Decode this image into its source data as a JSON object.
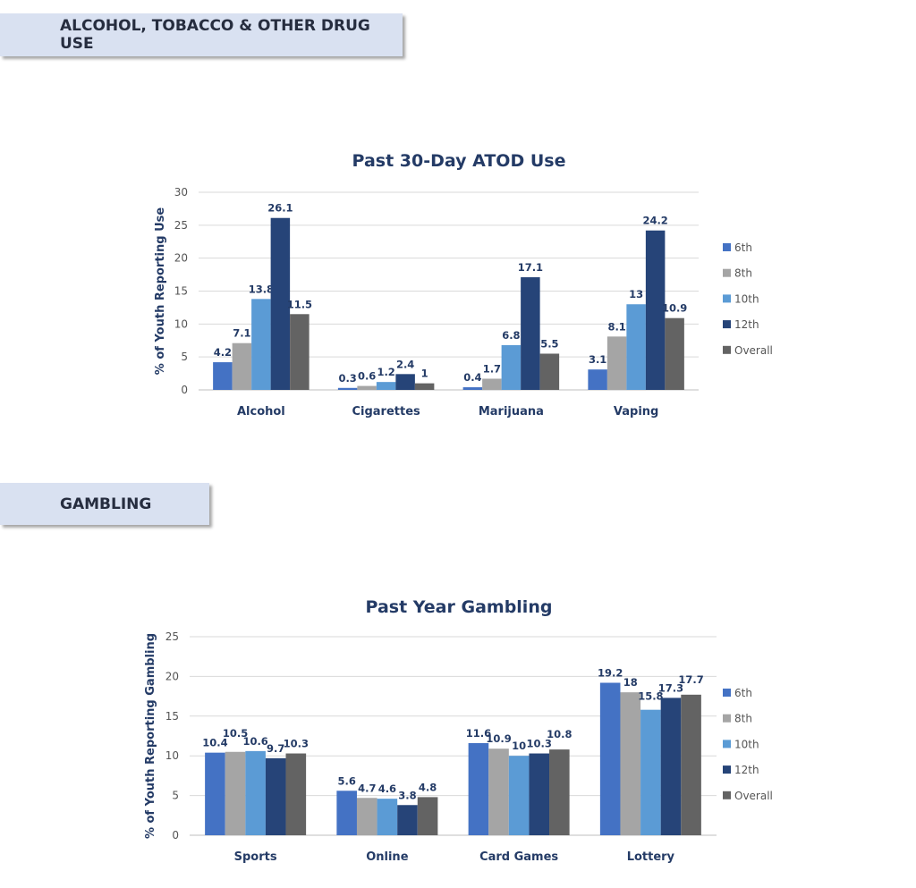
{
  "sections": {
    "atod": "ALCOHOL, TOBACCO & OTHER DRUG USE",
    "gambling": "GAMBLING"
  },
  "chart_data": [
    {
      "type": "bar",
      "title": "Past 30-Day ATOD Use",
      "xlabel": "",
      "ylabel": "% of Youth Reporting Use",
      "ylim": [
        0,
        30
      ],
      "yticks": [
        0,
        5,
        10,
        15,
        20,
        25,
        30
      ],
      "grid": true,
      "legend_position": "right",
      "categories": [
        "Alcohol",
        "Cigarettes",
        "Marijuana",
        "Vaping"
      ],
      "series": [
        {
          "name": "6th",
          "color": "#4472c4",
          "values": [
            4.2,
            0.3,
            0.4,
            3.1
          ]
        },
        {
          "name": "8th",
          "color": "#a5a5a5",
          "values": [
            7.1,
            0.6,
            1.7,
            8.1
          ]
        },
        {
          "name": "10th",
          "color": "#5b9bd5",
          "values": [
            13.8,
            1.2,
            6.8,
            13
          ]
        },
        {
          "name": "12th",
          "color": "#264478",
          "values": [
            26.1,
            2.4,
            17.1,
            24.2
          ]
        },
        {
          "name": "Overall",
          "color": "#636363",
          "values": [
            11.5,
            1,
            5.5,
            10.9
          ]
        }
      ]
    },
    {
      "type": "bar",
      "title": "Past Year Gambling",
      "xlabel": "",
      "ylabel": "% of Youth Reporting Gambling",
      "ylim": [
        0,
        25
      ],
      "yticks": [
        0,
        5,
        10,
        15,
        20,
        25
      ],
      "grid": true,
      "legend_position": "right",
      "categories": [
        "Sports",
        "Online",
        "Card Games",
        "Lottery"
      ],
      "series": [
        {
          "name": "6th",
          "color": "#4472c4",
          "values": [
            10.4,
            5.6,
            11.6,
            19.2
          ]
        },
        {
          "name": "8th",
          "color": "#a5a5a5",
          "values": [
            10.5,
            4.7,
            10.9,
            18
          ]
        },
        {
          "name": "10th",
          "color": "#5b9bd5",
          "values": [
            10.6,
            4.6,
            10,
            15.8
          ]
        },
        {
          "name": "12th",
          "color": "#264478",
          "values": [
            9.7,
            3.8,
            10.3,
            17.3
          ]
        },
        {
          "name": "Overall",
          "color": "#636363",
          "values": [
            10.3,
            4.8,
            10.8,
            17.7
          ]
        }
      ]
    }
  ]
}
